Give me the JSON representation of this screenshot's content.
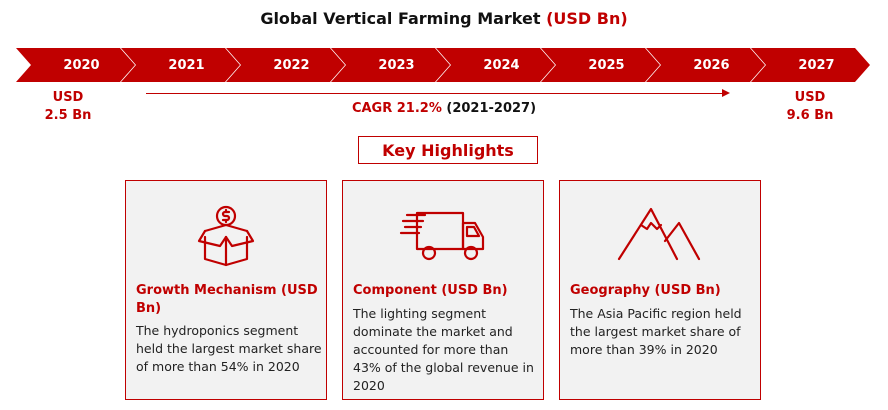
{
  "title": {
    "main": "Global Vertical Farming Market",
    "unit": "(USD Bn)"
  },
  "timeline": {
    "years": [
      "2020",
      "2021",
      "2022",
      "2023",
      "2024",
      "2025",
      "2026",
      "2027"
    ],
    "start_label": {
      "line1": "USD",
      "line2": "2.5 Bn"
    },
    "end_label": {
      "line1": "USD",
      "line2": "9.6 Bn"
    },
    "cagr": "CAGR 21.2%",
    "cagr_period": "(2021-2027)"
  },
  "key_highlights": "Key Highlights",
  "cards": [
    {
      "icon": "money-box-icon",
      "title": "Growth Mechanism (USD Bn)",
      "body": "The hydroponics segment held the largest market share of more than 54% in 2020"
    },
    {
      "icon": "truck-icon",
      "title": "Component (USD Bn)",
      "body": "The lighting segment dominate the market and accounted for more than 43% of the global revenue in 2020"
    },
    {
      "icon": "mountain-icon",
      "title": "Geography (USD Bn)",
      "body": "The Asia Pacific region held the largest market share of more than 39% in 2020"
    }
  ],
  "colors": {
    "accent": "#c00000",
    "card_bg": "#f2f2f2"
  }
}
